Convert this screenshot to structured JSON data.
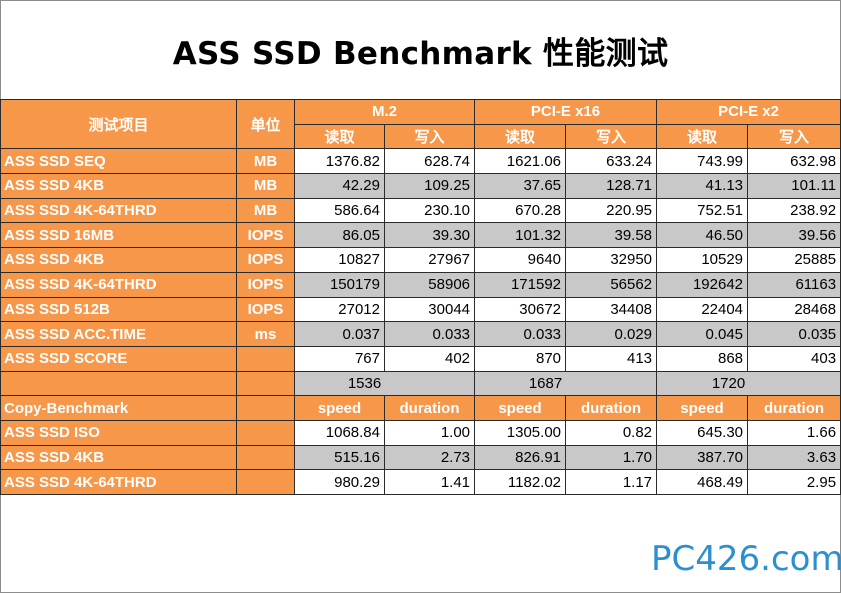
{
  "title": "ASS SSD Benchmark 性能测试",
  "header": {
    "item": "测试项目",
    "unit": "单位",
    "groups": [
      "M.2",
      "PCI-E x16",
      "PCI-E x2"
    ],
    "read": "读取",
    "write": "写入"
  },
  "rows": [
    {
      "label": "ASS SSD SEQ",
      "unit": "MB",
      "values": [
        "1376.82",
        "628.74",
        "1621.06",
        "633.24",
        "743.99",
        "632.98"
      ]
    },
    {
      "label": "ASS SSD 4KB",
      "unit": "MB",
      "values": [
        "42.29",
        "109.25",
        "37.65",
        "128.71",
        "41.13",
        "101.11"
      ]
    },
    {
      "label": "ASS SSD 4K-64THRD",
      "unit": "MB",
      "values": [
        "586.64",
        "230.10",
        "670.28",
        "220.95",
        "752.51",
        "238.92"
      ]
    },
    {
      "label": "ASS SSD 16MB",
      "unit": "IOPS",
      "values": [
        "86.05",
        "39.30",
        "101.32",
        "39.58",
        "46.50",
        "39.56"
      ]
    },
    {
      "label": "ASS SSD 4KB",
      "unit": "IOPS",
      "values": [
        "10827",
        "27967",
        "9640",
        "32950",
        "10529",
        "25885"
      ]
    },
    {
      "label": "ASS SSD 4K-64THRD",
      "unit": "IOPS",
      "values": [
        "150179",
        "58906",
        "171592",
        "56562",
        "192642",
        "61163"
      ]
    },
    {
      "label": "ASS SSD 512B",
      "unit": "IOPS",
      "values": [
        "27012",
        "30044",
        "30672",
        "34408",
        "22404",
        "28468"
      ]
    },
    {
      "label": "ASS SSD ACC.TIME",
      "unit": "ms",
      "values": [
        "0.037",
        "0.033",
        "0.033",
        "0.029",
        "0.045",
        "0.035"
      ]
    },
    {
      "label": "ASS SSD SCORE",
      "unit": "",
      "values": [
        "767",
        "402",
        "870",
        "413",
        "868",
        "403"
      ]
    }
  ],
  "totals": [
    "1536",
    "1687",
    "1720"
  ],
  "copy_header": {
    "label": "Copy-Benchmark",
    "speed": "speed",
    "duration": "duration"
  },
  "copy_rows": [
    {
      "label": "ASS SSD ISO",
      "values": [
        "1068.84",
        "1.00",
        "1305.00",
        "0.82",
        "645.30",
        "1.66"
      ]
    },
    {
      "label": "ASS SSD 4KB",
      "values": [
        "515.16",
        "2.73",
        "826.91",
        "1.70",
        "387.70",
        "3.63"
      ]
    },
    {
      "label": "ASS SSD 4K-64THRD",
      "values": [
        "980.29",
        "1.41",
        "1182.02",
        "1.17",
        "468.49",
        "2.95"
      ]
    }
  ],
  "watermark": "PC426.com",
  "colors": {
    "header": "#f7974a",
    "row_alt": "#c8c8c8",
    "logo": "#2b8fd0"
  }
}
